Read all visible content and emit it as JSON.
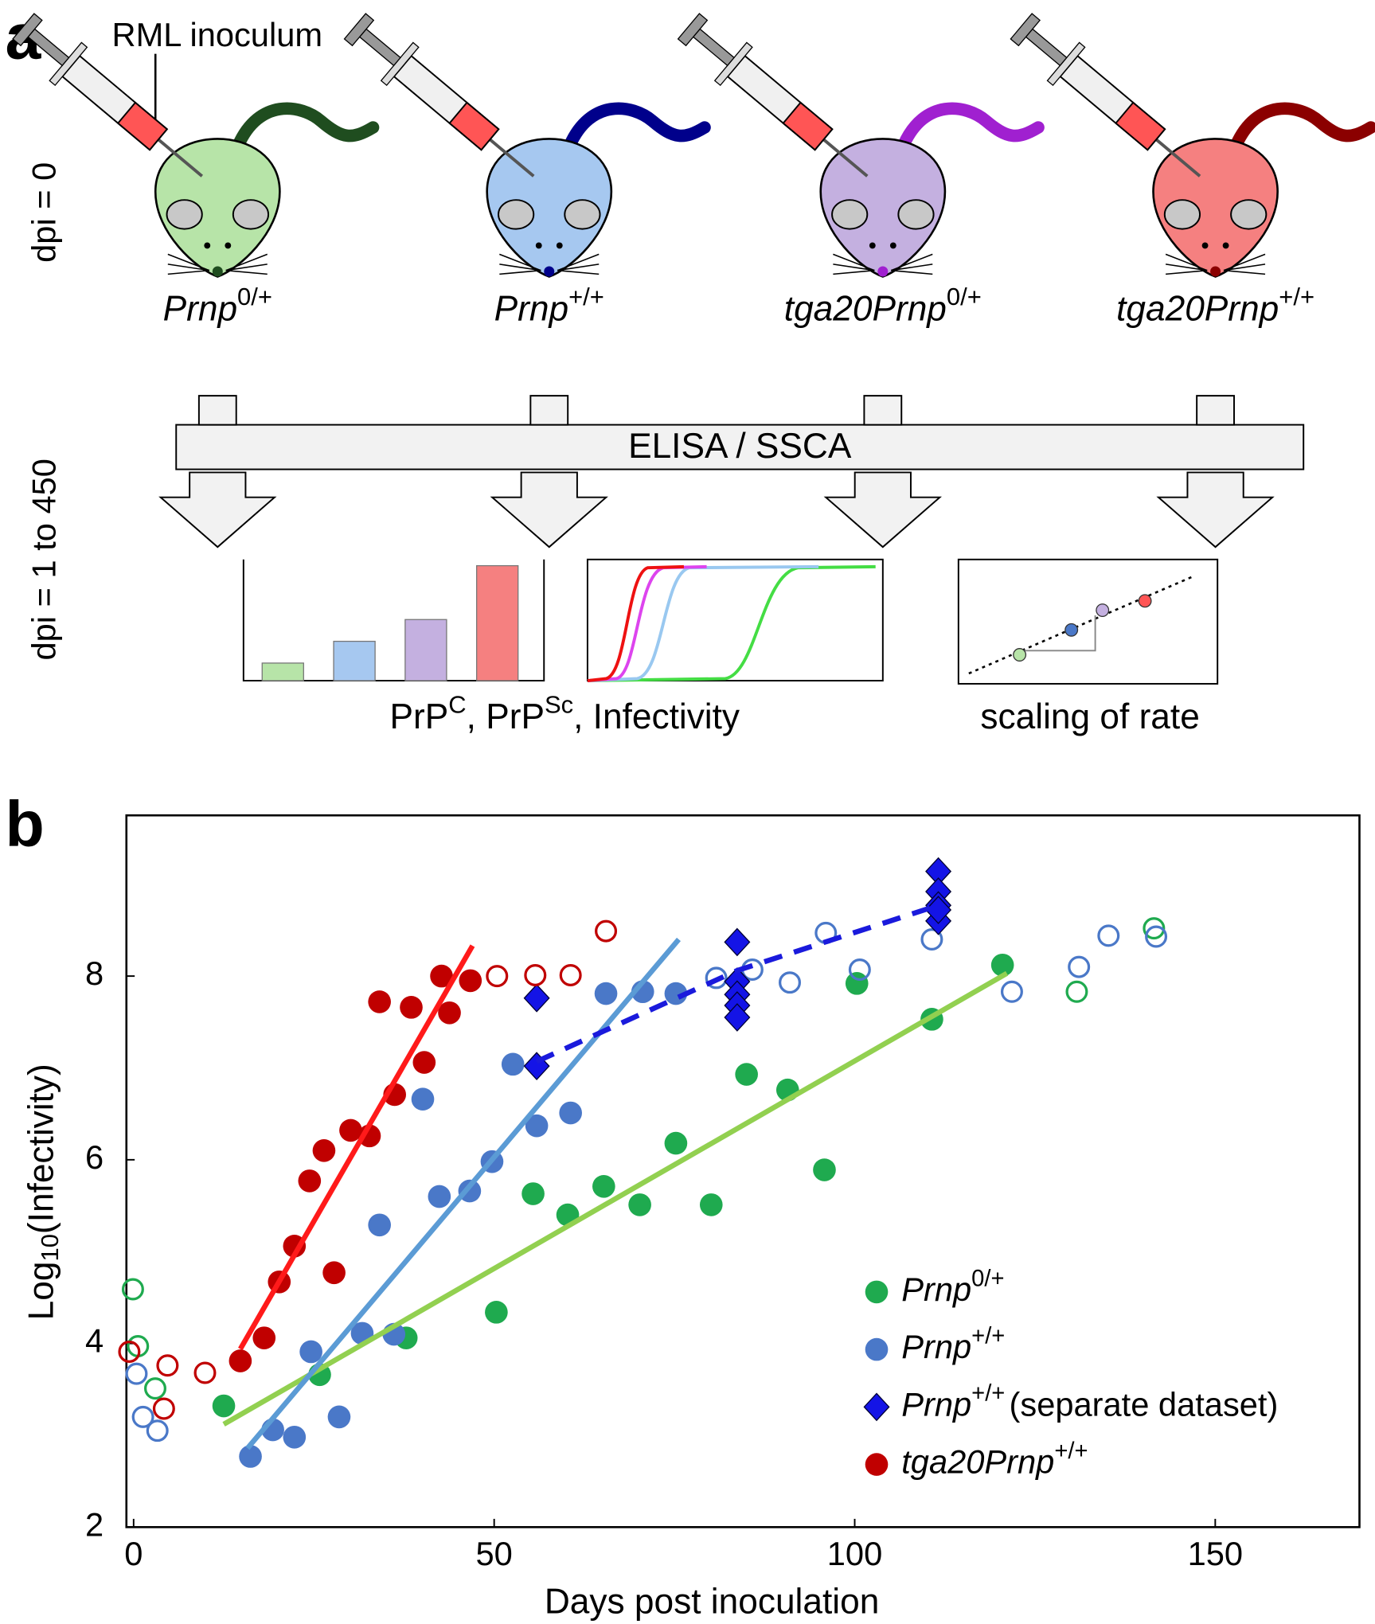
{
  "panel_a": {
    "letter": "a",
    "inoculum": "RML inoculum",
    "dpi_start": "dpi = 0",
    "dpi_range": "dpi = 1 to 450",
    "mice": [
      {
        "base": "Prnp",
        "sup": "0/+"
      },
      {
        "base": "Prnp",
        "sup": "+/+"
      },
      {
        "base": "tga20Prnp",
        "sup": "0/+"
      },
      {
        "base": "tga20Prnp",
        "sup": "+/+"
      }
    ],
    "assay": "ELISA / SSCA",
    "readouts": [
      {
        "text": "PrP"
      },
      {
        "sup": "C"
      },
      {
        "text": ", PrP"
      },
      {
        "sup": "Sc"
      },
      {
        "text": ", Infectivity"
      }
    ],
    "scaling": "scaling of rate"
  },
  "chart_data": {
    "type": "scatter",
    "letter": "b",
    "xlabel": "Days post inoculation",
    "ylabel": {
      "base": "Log",
      "sub": "10",
      "rest": "(Infectivity)"
    },
    "xlim": [
      -1,
      170
    ],
    "ylim": [
      2,
      9.75
    ],
    "xticks": [
      0,
      50,
      100,
      150
    ],
    "yticks": [
      2,
      4,
      6,
      8
    ],
    "series": [
      {
        "name": {
          "base": "Prnp",
          "sup": "0/+"
        },
        "color": "#1faa4f",
        "marker": "circle",
        "x": [
          12.5,
          25.8,
          37.8,
          50.3,
          55.4,
          60.2,
          65.2,
          70.2,
          75.2,
          80.1,
          85.0,
          90.7,
          95.8,
          100.3,
          110.7,
          120.5
        ],
        "values": [
          3.32,
          3.66,
          4.06,
          4.34,
          5.63,
          5.4,
          5.71,
          5.51,
          6.18,
          5.51,
          6.93,
          6.76,
          5.89,
          7.92,
          7.53,
          8.12
        ],
        "open_x": [
          -0.1,
          0.6,
          3.0,
          130.8,
          141.5
        ],
        "open_values": [
          4.59,
          3.97,
          3.51,
          7.83,
          8.52
        ],
        "fit": {
          "x": [
            12.5,
            121.1
          ],
          "values": [
            3.12,
            8.03
          ],
          "color": "#92d050",
          "style": "solid"
        }
      },
      {
        "name": {
          "base": "Prnp",
          "sup": "+/+"
        },
        "color": "#4a78c8",
        "marker": "circle",
        "x": [
          16.2,
          19.3,
          22.3,
          24.6,
          28.5,
          31.7,
          34.1,
          36.1,
          40.1,
          42.4,
          46.6,
          49.7,
          52.6,
          55.9,
          60.6,
          65.5,
          70.6,
          75.2
        ],
        "values": [
          2.77,
          3.06,
          2.98,
          3.91,
          3.2,
          4.11,
          5.29,
          4.1,
          6.66,
          5.6,
          5.66,
          5.98,
          7.04,
          6.37,
          6.51,
          7.81,
          7.83,
          7.81
        ],
        "open_x": [
          0.4,
          1.3,
          3.3,
          80.8,
          85.8,
          91.0,
          96.0,
          100.7,
          110.7,
          121.8,
          131.1,
          135.2,
          141.8
        ],
        "open_values": [
          3.67,
          3.2,
          3.05,
          7.98,
          8.07,
          7.93,
          8.47,
          8.07,
          8.4,
          7.83,
          8.1,
          8.44,
          8.43
        ],
        "fit": {
          "x": [
            15.8,
            75.6
          ],
          "values": [
            2.86,
            8.4
          ],
          "color": "#5b9bd5",
          "style": "solid"
        }
      },
      {
        "name": {
          "base": "Prnp",
          "sup": "+/+",
          "suffix": "(separate dataset)"
        },
        "color": "#1414e6",
        "marker": "diamond",
        "x": [
          55.9,
          55.9,
          83.7,
          83.7,
          83.7,
          83.7,
          83.7,
          111.6,
          111.6,
          111.6,
          111.6,
          111.6
        ],
        "values": [
          7.76,
          7.02,
          8.37,
          7.94,
          7.8,
          7.68,
          7.55,
          9.14,
          8.92,
          8.77,
          8.6,
          8.72
        ],
        "fit": {
          "x": [
            55.9,
            83.7,
            111.6
          ],
          "values": [
            7.07,
            8.06,
            8.77
          ],
          "color": "#1a1adc",
          "style": "dashed"
        }
      },
      {
        "name": {
          "base": "tga20Prnp",
          "sup": "+/+"
        },
        "color": "#c00000",
        "marker": "circle",
        "x": [
          14.8,
          18.1,
          20.2,
          22.3,
          24.4,
          26.4,
          27.8,
          30.1,
          32.7,
          34.1,
          36.2,
          38.5,
          40.3,
          42.7,
          43.8,
          46.7
        ],
        "values": [
          3.81,
          4.06,
          4.67,
          5.06,
          5.77,
          6.1,
          4.77,
          6.32,
          6.26,
          7.72,
          6.71,
          7.66,
          7.06,
          8.0,
          7.6,
          7.95
        ],
        "open_x": [
          -0.6,
          4.7,
          4.2,
          9.9,
          50.4,
          55.7,
          60.6,
          65.5
        ],
        "open_values": [
          3.91,
          3.76,
          3.29,
          3.68,
          8.0,
          8.01,
          8.01,
          8.49
        ],
        "fit": {
          "x": [
            14.8,
            47.0
          ],
          "values": [
            3.94,
            8.33
          ],
          "color": "#ff1a1a",
          "style": "solid"
        }
      }
    ]
  }
}
